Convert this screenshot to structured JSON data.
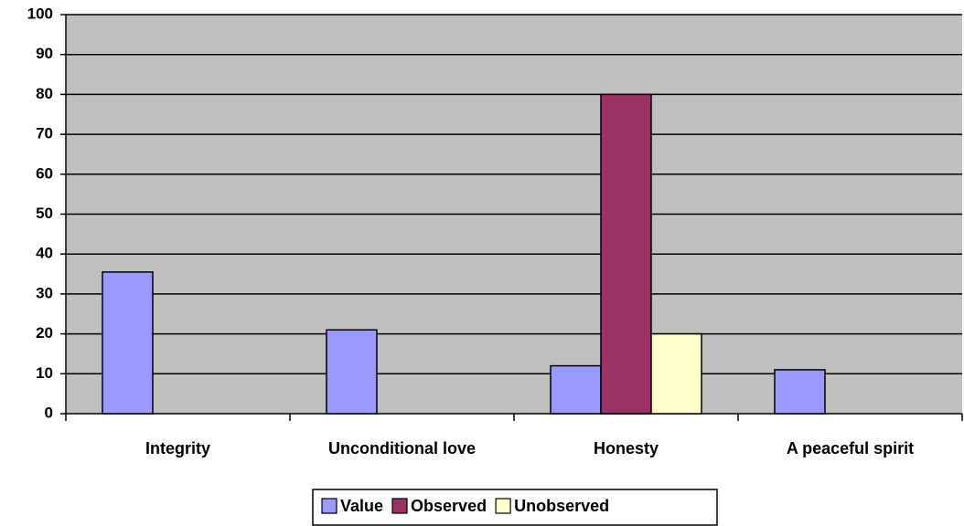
{
  "chart_data": {
    "type": "bar",
    "categories": [
      "Integrity",
      "Unconditional love",
      "Honesty",
      "A peaceful spirit"
    ],
    "series": [
      {
        "name": "Value",
        "color": "#9999ff",
        "values": [
          35.5,
          21,
          12,
          11
        ]
      },
      {
        "name": "Observed",
        "color": "#993366",
        "values": [
          null,
          null,
          80,
          null
        ]
      },
      {
        "name": "Unobserved",
        "color": "#ffffcc",
        "values": [
          null,
          null,
          20,
          null
        ]
      }
    ],
    "ylim": [
      0,
      100
    ],
    "yticks": [
      0,
      10,
      20,
      30,
      40,
      50,
      60,
      70,
      80,
      90,
      100
    ],
    "grid": true,
    "legend": "bottom",
    "plot_background": "#c0c0c0"
  }
}
